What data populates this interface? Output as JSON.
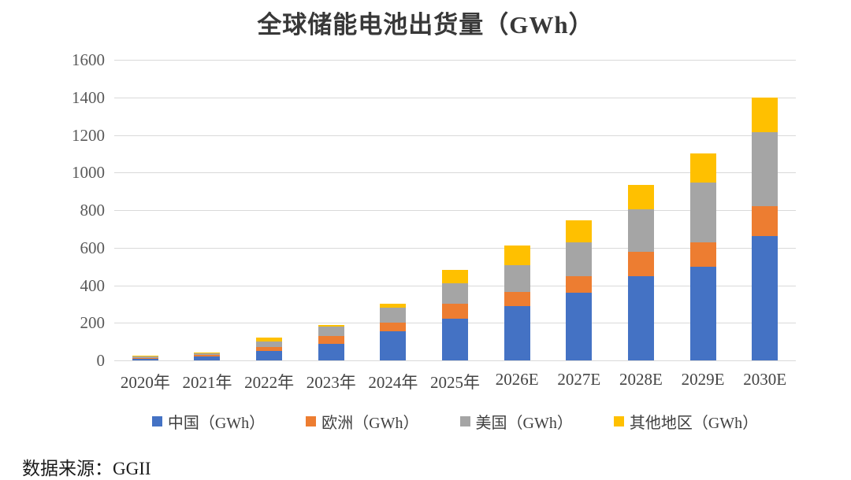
{
  "title": "全球储能电池出货量（GWh）",
  "source": "数据来源：GGII",
  "chart_data": {
    "type": "bar",
    "stacked": true,
    "title": "全球储能电池出货量（GWh）",
    "categories": [
      "2020年",
      "2021年",
      "2022年",
      "2023年",
      "2024年",
      "2025年",
      "2026E",
      "2027E",
      "2028E",
      "2029E",
      "2030E"
    ],
    "series": [
      {
        "name": "中国（GWh）",
        "color": "#4472C4",
        "values": [
          10,
          20,
          50,
          90,
          155,
          220,
          290,
          360,
          450,
          500,
          660
        ]
      },
      {
        "name": "欧洲（GWh）",
        "color": "#ED7D31",
        "values": [
          4,
          8,
          20,
          40,
          45,
          80,
          75,
          90,
          130,
          130,
          160
        ]
      },
      {
        "name": "美国（GWh）",
        "color": "#A5A5A5",
        "values": [
          8,
          12,
          30,
          50,
          80,
          110,
          140,
          180,
          225,
          315,
          395
        ]
      },
      {
        "name": "其他地区（GWh）",
        "color": "#FFC000",
        "values": [
          3,
          4,
          20,
          10,
          20,
          70,
          105,
          115,
          130,
          155,
          185
        ]
      }
    ],
    "totals": [
      25,
      44,
      120,
      190,
      300,
      480,
      610,
      745,
      935,
      1100,
      1400
    ],
    "xlabel": "",
    "ylabel": "",
    "ylim": [
      0,
      1600
    ],
    "yticks": [
      0,
      200,
      400,
      600,
      800,
      1000,
      1200,
      1400,
      1600
    ],
    "grid": true,
    "gridline_color": "#d9d9d9",
    "legend_position": "bottom"
  }
}
